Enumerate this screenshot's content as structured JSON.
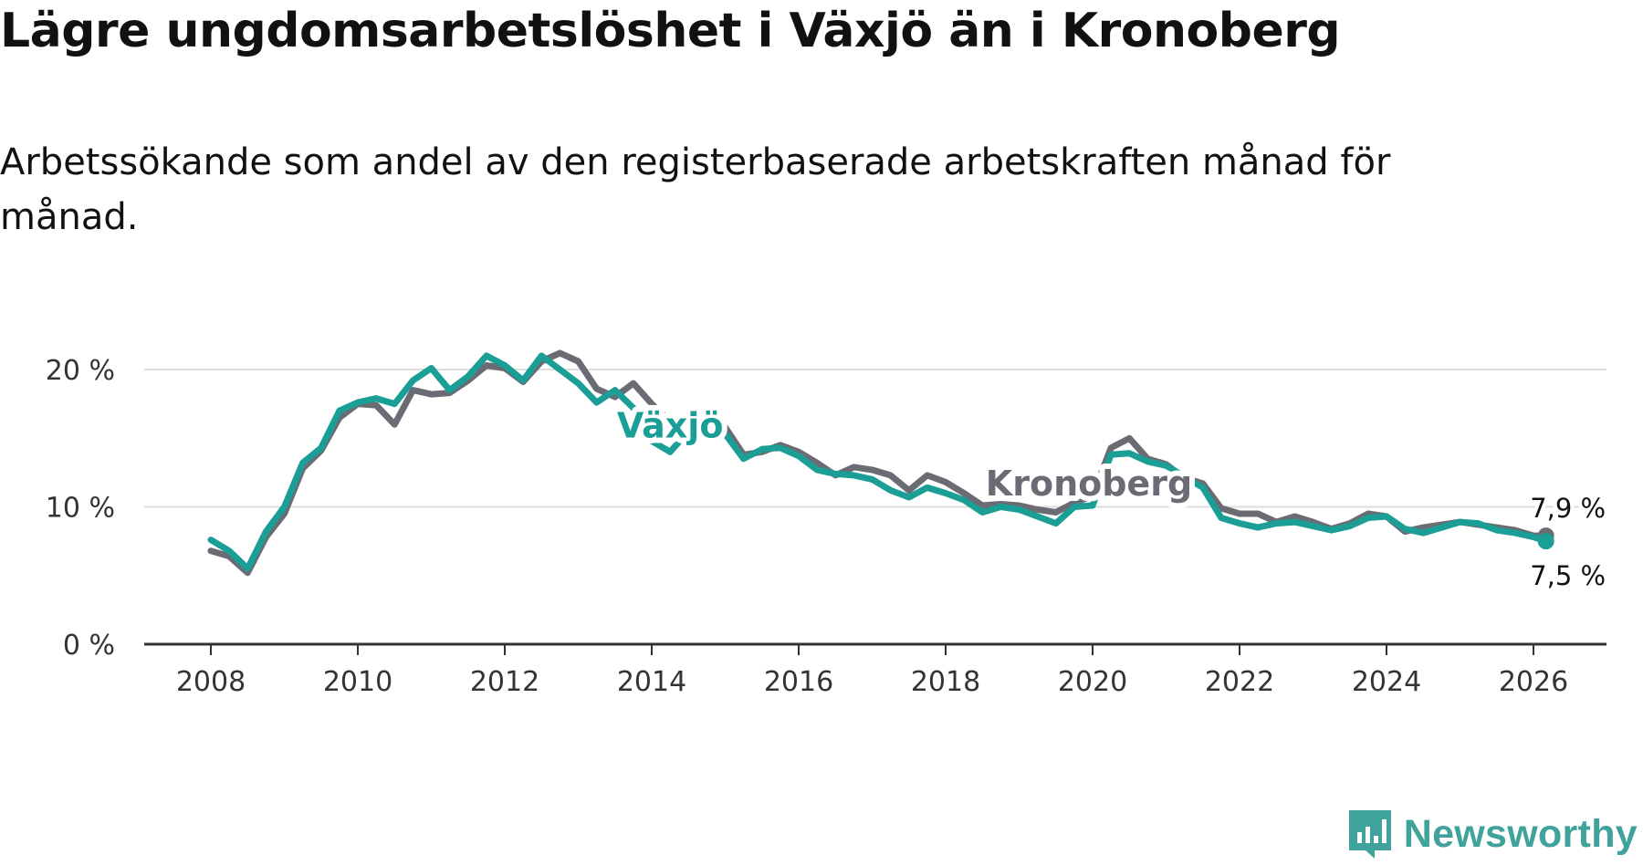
{
  "title": "Lägre ungdomsarbetslöshet i Växjö än i Kronoberg",
  "subtitle": "Arbetssökande som andel av den registerbaserade arbetskraften månad för månad.",
  "brand": {
    "name": "Newsworthy",
    "color": "#3fa39b",
    "icon": "newsworthy-logo-icon"
  },
  "chart_data": {
    "type": "line",
    "title": "Lägre ungdomsarbetslöshet i Växjö än i Kronoberg",
    "xlabel": "",
    "ylabel": "",
    "ylim": [
      0,
      22
    ],
    "xlim": [
      2007.6,
      2027.0
    ],
    "y_ticks": [
      0,
      10,
      20
    ],
    "y_tick_labels": [
      "0 %",
      "10 %",
      "20 %"
    ],
    "x_ticks": [
      2008,
      2010,
      2012,
      2014,
      2016,
      2018,
      2020,
      2022,
      2024,
      2026
    ],
    "x_tick_labels": [
      "2008",
      "2010",
      "2012",
      "2014",
      "2016",
      "2018",
      "2020",
      "2022",
      "2024",
      "2026"
    ],
    "grid": true,
    "series": [
      {
        "name": "Kronoberg",
        "color": "#6b6b73",
        "end_label": "7,9 %",
        "x": [
          2008.0,
          2008.25,
          2008.5,
          2008.75,
          2009.0,
          2009.25,
          2009.5,
          2009.75,
          2010.0,
          2010.25,
          2010.5,
          2010.75,
          2011.0,
          2011.25,
          2011.5,
          2011.75,
          2012.0,
          2012.25,
          2012.5,
          2012.75,
          2013.0,
          2013.25,
          2013.5,
          2013.75,
          2014.0,
          2014.25,
          2014.5,
          2014.75,
          2015.0,
          2015.25,
          2015.5,
          2015.75,
          2016.0,
          2016.25,
          2016.5,
          2016.75,
          2017.0,
          2017.25,
          2017.5,
          2017.75,
          2018.0,
          2018.25,
          2018.5,
          2018.75,
          2019.0,
          2019.25,
          2019.5,
          2019.75,
          2020.0,
          2020.25,
          2020.5,
          2020.75,
          2021.0,
          2021.25,
          2021.5,
          2021.75,
          2022.0,
          2022.25,
          2022.5,
          2022.75,
          2023.0,
          2023.25,
          2023.5,
          2023.75,
          2024.0,
          2024.25,
          2024.5,
          2024.75,
          2025.0,
          2025.25,
          2025.5,
          2025.75,
          2026.0,
          2026.17
        ],
        "values": [
          6.8,
          6.4,
          5.2,
          7.8,
          9.5,
          12.8,
          14.1,
          16.5,
          17.5,
          17.4,
          16.0,
          18.5,
          18.2,
          18.3,
          19.2,
          20.3,
          20.1,
          19.1,
          20.6,
          21.2,
          20.6,
          18.6,
          18.0,
          19.0,
          17.5,
          16.2,
          15.2,
          15.8,
          15.8,
          13.8,
          14.0,
          14.5,
          14.0,
          13.2,
          12.3,
          12.9,
          12.7,
          12.3,
          11.2,
          12.3,
          11.8,
          11.0,
          10.1,
          10.2,
          10.1,
          9.8,
          9.6,
          10.3,
          10.8,
          14.3,
          15.0,
          13.5,
          13.1,
          12.1,
          11.7,
          9.9,
          9.5,
          9.5,
          8.9,
          9.3,
          8.9,
          8.4,
          8.8,
          9.5,
          9.3,
          8.2,
          8.5,
          8.7,
          8.9,
          8.7,
          8.5,
          8.3,
          7.9,
          7.9
        ]
      },
      {
        "name": "Växjö",
        "color": "#1a9e96",
        "end_label": "7,5 %",
        "x": [
          2008.0,
          2008.25,
          2008.5,
          2008.75,
          2009.0,
          2009.25,
          2009.5,
          2009.75,
          2010.0,
          2010.25,
          2010.5,
          2010.75,
          2011.0,
          2011.25,
          2011.5,
          2011.75,
          2012.0,
          2012.25,
          2012.5,
          2012.75,
          2013.0,
          2013.25,
          2013.5,
          2013.75,
          2014.0,
          2014.25,
          2014.5,
          2014.75,
          2015.0,
          2015.25,
          2015.5,
          2015.75,
          2016.0,
          2016.25,
          2016.5,
          2016.75,
          2017.0,
          2017.25,
          2017.5,
          2017.75,
          2018.0,
          2018.25,
          2018.5,
          2018.75,
          2019.0,
          2019.25,
          2019.5,
          2019.75,
          2020.0,
          2020.25,
          2020.5,
          2020.75,
          2021.0,
          2021.25,
          2021.5,
          2021.75,
          2022.0,
          2022.25,
          2022.5,
          2022.75,
          2023.0,
          2023.25,
          2023.5,
          2023.75,
          2024.0,
          2024.25,
          2024.5,
          2024.75,
          2025.0,
          2025.25,
          2025.5,
          2025.75,
          2026.0,
          2026.17
        ],
        "values": [
          7.6,
          6.8,
          5.5,
          8.2,
          10.0,
          13.2,
          14.3,
          17.0,
          17.6,
          17.9,
          17.5,
          19.2,
          20.1,
          18.5,
          19.5,
          21.0,
          20.3,
          19.2,
          21.0,
          20.0,
          19.0,
          17.6,
          18.5,
          17.2,
          14.8,
          14.0,
          15.5,
          16.0,
          15.3,
          13.5,
          14.2,
          14.3,
          13.7,
          12.7,
          12.4,
          12.3,
          12.0,
          11.2,
          10.7,
          11.4,
          11.0,
          10.5,
          9.6,
          10.0,
          9.8,
          9.3,
          8.8,
          10.0,
          10.1,
          13.8,
          13.9,
          13.3,
          13.0,
          12.2,
          11.4,
          9.2,
          8.8,
          8.5,
          8.8,
          8.9,
          8.6,
          8.3,
          8.6,
          9.2,
          9.3,
          8.4,
          8.1,
          8.5,
          8.9,
          8.8,
          8.3,
          8.1,
          7.8,
          7.5
        ]
      }
    ],
    "series_labels": [
      {
        "text": "Växjö",
        "series": "Växjö",
        "at_x": 2014.25,
        "at_y": 15.9
      },
      {
        "text": "Kronoberg",
        "series": "Kronoberg",
        "at_x": 2019.95,
        "at_y": 11.7
      }
    ]
  }
}
